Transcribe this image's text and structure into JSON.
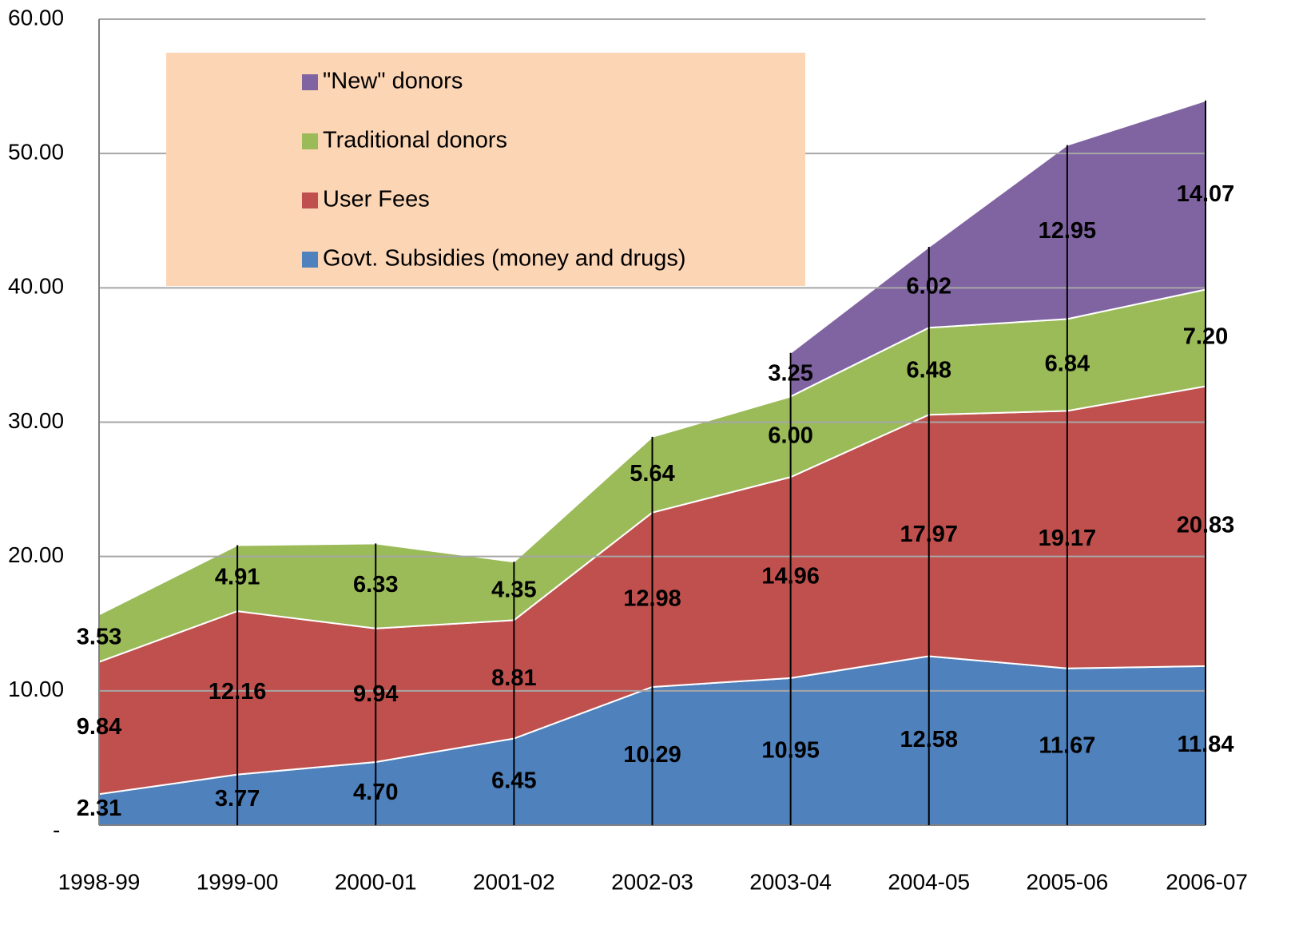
{
  "chart_data": {
    "type": "stacked_area",
    "categories": [
      "1998-99",
      "1999-00",
      "2000-01",
      "2001-02",
      "2002-03",
      "2003-04",
      "2004-05",
      "2005-06",
      "2006-07"
    ],
    "series": [
      {
        "name": "Govt. Subsidies (money and drugs)",
        "color": "#4f81bd",
        "values": [
          2.31,
          3.77,
          4.7,
          6.45,
          10.29,
          10.95,
          12.58,
          11.67,
          11.84
        ],
        "value_labels": [
          "2.31",
          "3.77",
          "4.70",
          "6.45",
          "10.29",
          "10.95",
          "12.58",
          "11.67",
          "11.84"
        ]
      },
      {
        "name": "User Fees",
        "color": "#c0504d",
        "values": [
          9.84,
          12.16,
          9.94,
          8.81,
          12.98,
          14.96,
          17.97,
          19.17,
          20.83
        ],
        "value_labels": [
          "9.84",
          "12.16",
          "9.94",
          "8.81",
          "12.98",
          "14.96",
          "17.97",
          "19.17",
          "20.83"
        ]
      },
      {
        "name": "Traditional donors",
        "color": "#9bbb59",
        "values": [
          3.53,
          4.91,
          6.33,
          4.35,
          5.64,
          6.0,
          6.48,
          6.84,
          7.2
        ],
        "value_labels": [
          "3.53",
          "4.91",
          "6.33",
          "4.35",
          "5.64",
          "6.00",
          "6.48",
          "6.84",
          "7.20"
        ]
      },
      {
        "name": "\"New\" donors",
        "color": "#8064a2",
        "values": [
          null,
          null,
          null,
          null,
          null,
          3.25,
          6.02,
          12.95,
          14.07
        ],
        "value_labels": [
          null,
          null,
          null,
          null,
          null,
          "3.25",
          "6.02",
          "12.95",
          "14.07"
        ]
      }
    ],
    "ylim": [
      0,
      60
    ],
    "yticks": [
      {
        "value": 0,
        "label": "-"
      },
      {
        "value": 10,
        "label": "10.00"
      },
      {
        "value": 20,
        "label": "20.00"
      },
      {
        "value": 30,
        "label": "30.00"
      },
      {
        "value": 40,
        "label": "40.00"
      },
      {
        "value": 50,
        "label": "50.00"
      },
      {
        "value": 60,
        "label": "60.00"
      }
    ],
    "grid": true,
    "legend": "upper left"
  }
}
